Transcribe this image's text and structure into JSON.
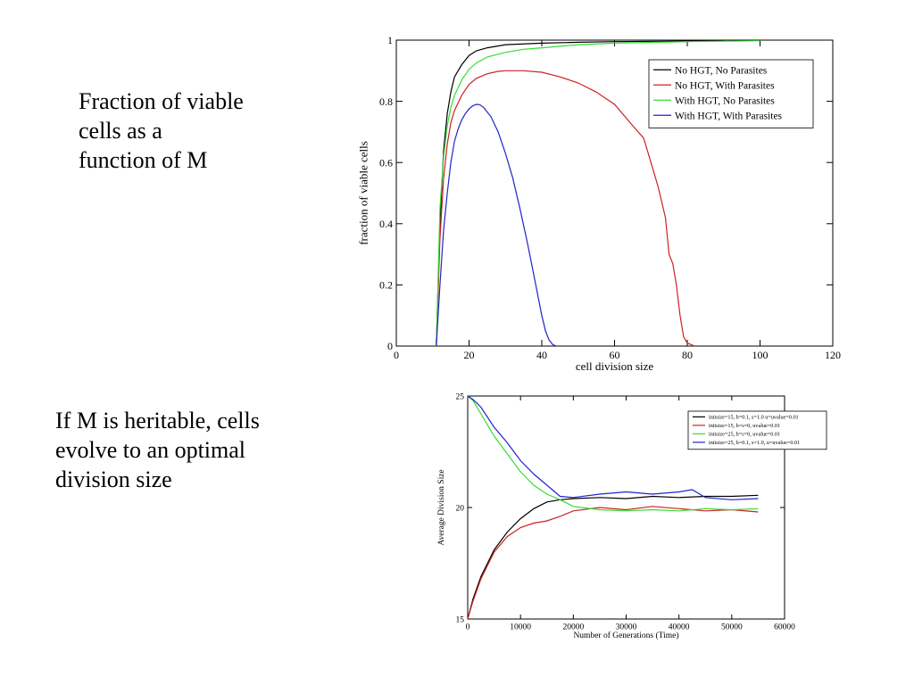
{
  "captions": {
    "top": [
      "Fraction of viable",
      "cells as a",
      "function of M"
    ],
    "bottom": [
      "If M is heritable, cells",
      "evolve to an optimal",
      "division size"
    ]
  },
  "chart_data": [
    {
      "type": "line",
      "xlabel": "cell division size",
      "ylabel": "fraction of viable cells",
      "xlim": [
        0,
        120
      ],
      "ylim": [
        0,
        1
      ],
      "xticks": [
        0,
        20,
        40,
        60,
        80,
        100,
        120
      ],
      "yticks": [
        0,
        0.2,
        0.4,
        0.6,
        0.8,
        1
      ],
      "legend_position": "top-right",
      "series": [
        {
          "name": "No HGT, No Parasites",
          "color": "#000000",
          "x": [
            11,
            12,
            13,
            14,
            15,
            16,
            18,
            20,
            22,
            25,
            30,
            40,
            50,
            60,
            80,
            90
          ],
          "y": [
            0,
            0.4,
            0.64,
            0.76,
            0.83,
            0.88,
            0.92,
            0.95,
            0.965,
            0.975,
            0.985,
            0.99,
            0.993,
            0.995,
            0.997,
            0.998
          ]
        },
        {
          "name": "No HGT, With Parasites",
          "color": "#cc2222",
          "x": [
            11,
            12,
            13,
            14,
            15,
            16,
            18,
            20,
            22,
            25,
            28,
            30,
            35,
            40,
            45,
            50,
            55,
            60,
            65,
            68,
            70,
            72,
            74,
            75,
            76,
            77,
            78,
            79,
            80,
            81,
            82
          ],
          "y": [
            0,
            0.35,
            0.55,
            0.66,
            0.73,
            0.77,
            0.82,
            0.855,
            0.875,
            0.89,
            0.898,
            0.9,
            0.9,
            0.895,
            0.88,
            0.86,
            0.83,
            0.79,
            0.72,
            0.68,
            0.6,
            0.52,
            0.42,
            0.3,
            0.27,
            0.2,
            0.1,
            0.03,
            0.01,
            0.005,
            0
          ]
        },
        {
          "name": "With HGT, No Parasites",
          "color": "#33dd33",
          "x": [
            11,
            12,
            13,
            14,
            15,
            16,
            18,
            20,
            22,
            25,
            30,
            35,
            40,
            50,
            60,
            80,
            100
          ],
          "y": [
            0,
            0.45,
            0.62,
            0.72,
            0.78,
            0.82,
            0.87,
            0.905,
            0.925,
            0.945,
            0.96,
            0.97,
            0.975,
            0.985,
            0.99,
            0.995,
            0.998
          ]
        },
        {
          "name": "With HGT, With Parasites",
          "color": "#2222cc",
          "x": [
            11,
            12,
            13,
            14,
            15,
            16,
            17,
            18,
            19,
            20,
            21,
            22,
            23,
            24,
            26,
            28,
            30,
            32,
            34,
            36,
            38,
            40,
            41,
            42,
            43,
            44
          ],
          "y": [
            0,
            0.2,
            0.38,
            0.5,
            0.6,
            0.67,
            0.71,
            0.74,
            0.76,
            0.775,
            0.785,
            0.79,
            0.789,
            0.78,
            0.75,
            0.7,
            0.63,
            0.55,
            0.45,
            0.34,
            0.22,
            0.1,
            0.05,
            0.02,
            0.005,
            0
          ]
        }
      ]
    },
    {
      "type": "line",
      "xlabel": "Number of Generations (Time)",
      "ylabel": "Average Division Size",
      "xlim": [
        0,
        60000
      ],
      "ylim": [
        15,
        25
      ],
      "xticks": [
        0,
        10000,
        20000,
        30000,
        40000,
        50000,
        60000
      ],
      "yticks": [
        15,
        20,
        25
      ],
      "legend_position": "top-right",
      "series": [
        {
          "name": "initsize=15, h=0.1, s=1.0 u=uvalue=0.01",
          "color": "#000000",
          "x": [
            0,
            1000,
            2500,
            5000,
            7500,
            10000,
            12500,
            15000,
            17500,
            20000,
            25000,
            30000,
            35000,
            40000,
            45000,
            50000,
            55000
          ],
          "y": [
            15,
            15.9,
            16.9,
            18.1,
            18.9,
            19.5,
            19.95,
            20.25,
            20.35,
            20.4,
            20.45,
            20.4,
            20.5,
            20.45,
            20.5,
            20.5,
            20.55
          ]
        },
        {
          "name": "initsize=15, h=s=0, uvalue=0.01",
          "color": "#cc2222",
          "x": [
            0,
            1000,
            2500,
            5000,
            7500,
            10000,
            12500,
            15000,
            17500,
            20000,
            25000,
            30000,
            35000,
            40000,
            45000,
            50000,
            55000
          ],
          "y": [
            15,
            15.8,
            16.8,
            18.0,
            18.7,
            19.1,
            19.3,
            19.4,
            19.6,
            19.85,
            20.0,
            19.9,
            20.05,
            19.95,
            19.85,
            19.9,
            19.8
          ]
        },
        {
          "name": "initsize=25, h=s=0, uvalue=0.01",
          "color": "#33dd33",
          "x": [
            0,
            1000,
            2500,
            5000,
            7500,
            10000,
            12500,
            15000,
            17500,
            20000,
            25000,
            30000,
            35000,
            40000,
            45000,
            50000,
            55000
          ],
          "y": [
            25,
            24.8,
            24.2,
            23.2,
            22.4,
            21.6,
            21.0,
            20.6,
            20.35,
            20.05,
            19.9,
            19.85,
            19.9,
            19.85,
            19.95,
            19.9,
            19.95
          ]
        },
        {
          "name": "initsize=25, h=0.1, s=1.0, u=uvalue=0.01",
          "color": "#2222cc",
          "x": [
            0,
            1000,
            2500,
            5000,
            7500,
            10000,
            12500,
            15000,
            17500,
            20000,
            25000,
            30000,
            35000,
            40000,
            42500,
            45000,
            50000,
            55000
          ],
          "y": [
            25,
            24.85,
            24.5,
            23.6,
            22.9,
            22.1,
            21.5,
            21.0,
            20.5,
            20.45,
            20.6,
            20.7,
            20.6,
            20.7,
            20.8,
            20.45,
            20.35,
            20.4
          ]
        }
      ]
    }
  ]
}
